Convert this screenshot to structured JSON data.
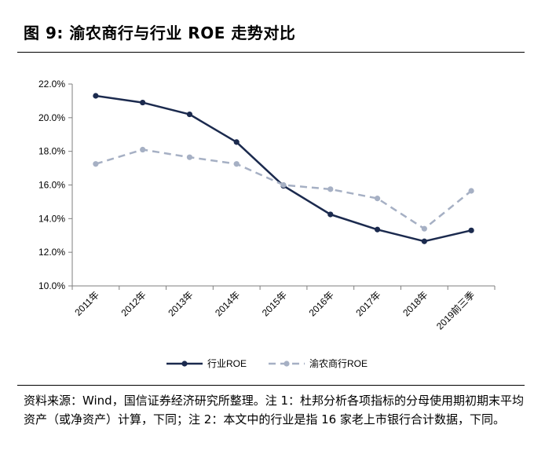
{
  "figure": {
    "title": "图 9:  渝农商行与行业 ROE 走势对比",
    "source": "资料来源：Wind，国信证券经济研究所整理。注 1：杜邦分析各项指标的分母使用期初期末平均资产（或净资产）计算，下同；注 2：本文中的行业是指 16 家老上市银行合计数据，下同。"
  },
  "colors": {
    "series1": "#1b2a4e",
    "series2": "#a6b0c4",
    "axis": "#7f7f7f"
  },
  "chart_data": {
    "type": "line",
    "categories": [
      "2011年",
      "2012年",
      "2013年",
      "2014年",
      "2015年",
      "2016年",
      "2017年",
      "2018年",
      "2019前三季"
    ],
    "y_ticks": [
      "10.0%",
      "12.0%",
      "14.0%",
      "16.0%",
      "18.0%",
      "20.0%",
      "22.0%"
    ],
    "ylim": [
      10.0,
      22.0
    ],
    "grid": false,
    "legend": "bottom",
    "series": [
      {
        "name": "行业ROE",
        "style": "solid",
        "values": [
          21.3,
          20.9,
          20.2,
          18.55,
          15.95,
          14.25,
          13.35,
          12.65,
          13.3
        ]
      },
      {
        "name": "渝农商行ROE",
        "style": "dashed",
        "values": [
          17.25,
          18.1,
          17.65,
          17.25,
          16.0,
          15.75,
          15.2,
          13.4,
          15.65
        ]
      }
    ]
  }
}
